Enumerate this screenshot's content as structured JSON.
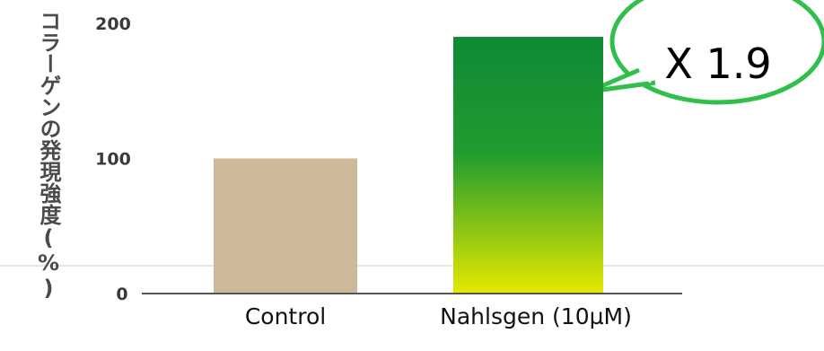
{
  "chart_data": {
    "type": "bar",
    "categories": [
      "Control",
      "Nahlsgen (10µM)"
    ],
    "values": [
      100,
      190
    ],
    "ylabel": "コラーゲンの発現強度(%)",
    "yticks": [
      0,
      100,
      200
    ],
    "ylim": [
      0,
      200
    ],
    "grid": false,
    "annotation": "X 1.9",
    "colors": {
      "control": "#cdb89a",
      "nahlsgen_top": "#0f8a35",
      "nahlsgen_bottom": "#e6e800",
      "callout_border": "#2fbf4a",
      "axis": "#555555"
    }
  }
}
